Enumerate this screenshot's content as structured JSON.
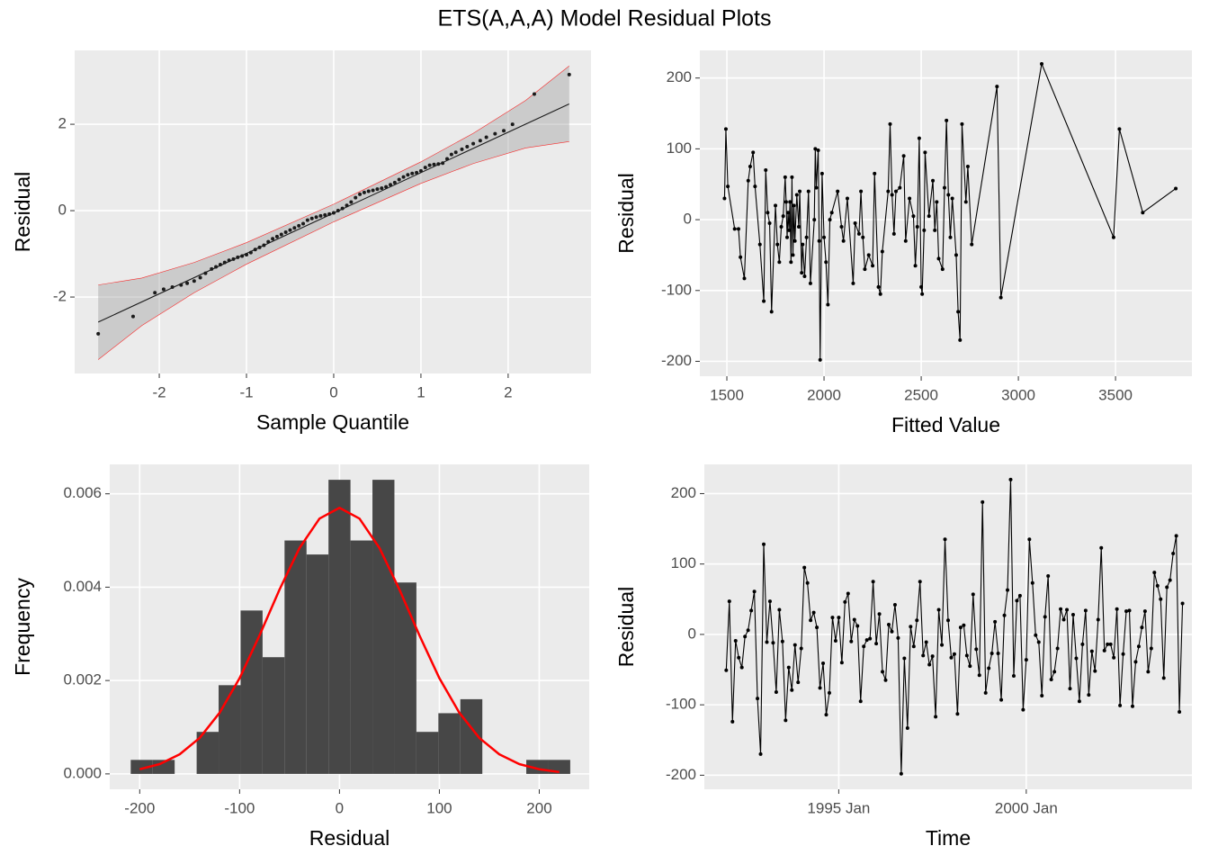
{
  "title": "ETS(A,A,A) Model Residual Plots",
  "chart_data": [
    {
      "type": "qq",
      "xlabel": "Sample Quantile",
      "ylabel": "Residual",
      "color": "#1a1a1a",
      "x": [
        -2.7,
        -2.3,
        -2.05,
        -1.95,
        -1.85,
        -1.75,
        -1.68,
        -1.6,
        -1.53,
        -1.47,
        -1.4,
        -1.35,
        -1.3,
        -1.25,
        -1.2,
        -1.15,
        -1.1,
        -1.05,
        -1,
        -0.95,
        -0.9,
        -0.85,
        -0.8,
        -0.75,
        -0.7,
        -0.65,
        -0.6,
        -0.55,
        -0.5,
        -0.45,
        -0.4,
        -0.35,
        -0.3,
        -0.25,
        -0.2,
        -0.15,
        -0.1,
        -0.05,
        0,
        0.05,
        0.1,
        0.15,
        0.2,
        0.25,
        0.3,
        0.35,
        0.4,
        0.45,
        0.5,
        0.55,
        0.6,
        0.65,
        0.7,
        0.75,
        0.8,
        0.85,
        0.9,
        0.95,
        1,
        1.05,
        1.1,
        1.15,
        1.2,
        1.25,
        1.3,
        1.35,
        1.4,
        1.47,
        1.53,
        1.6,
        1.68,
        1.75,
        1.85,
        1.95,
        2.05,
        2.3,
        2.7
      ],
      "values": [
        -2.85,
        -2.45,
        -1.9,
        -1.82,
        -1.77,
        -1.72,
        -1.68,
        -1.63,
        -1.55,
        -1.45,
        -1.35,
        -1.3,
        -1.25,
        -1.2,
        -1.15,
        -1.12,
        -1.08,
        -1.05,
        -1.02,
        -0.97,
        -0.9,
        -0.85,
        -0.8,
        -0.72,
        -0.65,
        -0.6,
        -0.55,
        -0.5,
        -0.45,
        -0.4,
        -0.35,
        -0.3,
        -0.22,
        -0.18,
        -0.15,
        -0.12,
        -0.1,
        -0.08,
        -0.05,
        0,
        0.05,
        0.12,
        0.2,
        0.3,
        0.38,
        0.42,
        0.45,
        0.47,
        0.5,
        0.52,
        0.55,
        0.6,
        0.65,
        0.72,
        0.78,
        0.83,
        0.86,
        0.88,
        0.92,
        1.0,
        1.05,
        1.07,
        1.08,
        1.1,
        1.2,
        1.3,
        1.35,
        1.42,
        1.48,
        1.55,
        1.62,
        1.7,
        1.78,
        1.85,
        2.0,
        2.7,
        3.15
      ],
      "reference_line": {
        "x": [
          -2.7,
          2.7
        ],
        "values": [
          -2.58,
          2.47
        ]
      },
      "band": {
        "color": "#ff0000",
        "x": [
          -2.7,
          -2.2,
          -1.6,
          -1,
          0,
          1,
          1.6,
          2.2,
          2.7
        ],
        "lower": [
          -3.45,
          -2.66,
          -1.9,
          -1.24,
          -0.26,
          0.63,
          1.09,
          1.45,
          1.6
        ],
        "upper": [
          -1.72,
          -1.56,
          -1.2,
          -0.74,
          0.15,
          1.13,
          1.79,
          2.55,
          3.35
        ]
      },
      "xlim": [
        -2.97,
        2.95
      ],
      "ylim": [
        -3.77,
        3.71
      ],
      "xticks": [
        -2,
        -1,
        0,
        1,
        2
      ],
      "yticks": [
        -2,
        0,
        2
      ],
      "grid": true
    },
    {
      "type": "line",
      "xlabel": "Fitted Value",
      "ylabel": "Residual",
      "x": [
        1488,
        1495,
        1505,
        1540,
        1560,
        1570,
        1590,
        1610,
        1620,
        1635,
        1645,
        1670,
        1690,
        1700,
        1710,
        1720,
        1730,
        1750,
        1760,
        1770,
        1780,
        1790,
        1800,
        1805,
        1810,
        1815,
        1820,
        1825,
        1830,
        1835,
        1840,
        1845,
        1850,
        1860,
        1870,
        1875,
        1885,
        1890,
        1900,
        1910,
        1920,
        1930,
        1950,
        1955,
        1960,
        1970,
        1975,
        1980,
        1990,
        2000,
        2010,
        2020,
        2030,
        2040,
        2070,
        2090,
        2100,
        2120,
        2150,
        2160,
        2180,
        2190,
        2200,
        2210,
        2230,
        2250,
        2260,
        2280,
        2290,
        2300,
        2330,
        2340,
        2350,
        2360,
        2370,
        2390,
        2410,
        2420,
        2440,
        2460,
        2470,
        2480,
        2490,
        2500,
        2505,
        2515,
        2520,
        2540,
        2560,
        2570,
        2580,
        2590,
        2610,
        2620,
        2630,
        2640,
        2650,
        2660,
        2680,
        2690,
        2700,
        2710,
        2730,
        2740,
        2760,
        2890,
        2910,
        3120,
        3490,
        3520,
        3640,
        3810
      ],
      "series": [
        {
          "color": "#000000",
          "values": [
            30,
            128,
            47,
            -13,
            -13,
            -53,
            -83,
            55,
            75,
            95,
            47,
            -35,
            -115,
            70,
            10,
            -5,
            -130,
            20,
            -35,
            -60,
            -10,
            5,
            60,
            25,
            -25,
            10,
            -15,
            25,
            -60,
            60,
            -50,
            20,
            -30,
            35,
            -10,
            40,
            -75,
            -35,
            -80,
            -25,
            40,
            -90,
            0,
            100,
            45,
            98,
            -30,
            -198,
            65,
            -25,
            -60,
            -120,
            0,
            10,
            40,
            -10,
            -30,
            30,
            -90,
            -5,
            -20,
            40,
            -25,
            -70,
            -50,
            -65,
            65,
            -95,
            -105,
            -45,
            40,
            135,
            35,
            -20,
            40,
            45,
            90,
            -30,
            30,
            5,
            -65,
            -10,
            115,
            -95,
            -105,
            -15,
            95,
            5,
            55,
            -15,
            25,
            -55,
            -70,
            45,
            140,
            35,
            -25,
            30,
            -50,
            -130,
            -170,
            135,
            25,
            75,
            -35,
            188,
            -110,
            220,
            -25,
            128,
            10,
            44
          ]
        }
      ],
      "xlim": [
        1361,
        3893
      ],
      "ylim": [
        -221,
        239
      ],
      "xticks": [
        1500,
        2000,
        2500,
        3000,
        3500
      ],
      "yticks": [
        -200,
        -100,
        0,
        100,
        200
      ],
      "grid": true
    },
    {
      "type": "histogram",
      "xlabel": "Residual",
      "ylabel": "Frequency",
      "color": "#474747",
      "bins": [
        -209,
        -187,
        -165,
        -143,
        -121,
        -99,
        -77,
        -55,
        -33,
        -11,
        11,
        33,
        55,
        77,
        99,
        121,
        143,
        165,
        187,
        209,
        231
      ],
      "values": [
        0.0003,
        0.0003,
        0,
        0.0009,
        0.0019,
        0.0035,
        0.0025,
        0.005,
        0.0047,
        0.0063,
        0.005,
        0.0063,
        0.0041,
        0.0009,
        0.0013,
        0.0016,
        0,
        0,
        0.0003,
        0.0003
      ],
      "density_curve": {
        "color": "#ff0000",
        "x": [
          -200,
          -180,
          -160,
          -140,
          -120,
          -100,
          -80,
          -60,
          -40,
          -20,
          0,
          20,
          40,
          60,
          80,
          100,
          120,
          140,
          160,
          180,
          200,
          220
        ],
        "values": [
          0.0001,
          0.00021,
          0.00042,
          0.00077,
          0.00131,
          0.00205,
          0.00297,
          0.00395,
          0.00484,
          0.00547,
          0.0057,
          0.00547,
          0.00484,
          0.00395,
          0.00297,
          0.00205,
          0.00131,
          0.00077,
          0.00042,
          0.00021,
          0.0001,
          4e-05
        ]
      },
      "xlim": [
        -230,
        250
      ],
      "ylim": [
        -0.00033,
        0.00663
      ],
      "xticks": [
        -200,
        -100,
        0,
        100,
        200
      ],
      "yticks": [
        {
          "value": 0,
          "label": "0.000"
        },
        {
          "value": 0.002,
          "label": "0.002"
        },
        {
          "value": 0.004,
          "label": "0.004"
        },
        {
          "value": 0.006,
          "label": "0.006"
        }
      ],
      "grid": true
    },
    {
      "type": "line",
      "xlabel": "Time",
      "ylabel": "Residual",
      "x": [
        "1992-01",
        "1992-02",
        "1992-03",
        "1992-04",
        "1992-05",
        "1992-06",
        "1992-07",
        "1992-08",
        "1992-09",
        "1992-10",
        "1992-11",
        "1992-12",
        "1993-01",
        "1993-02",
        "1993-03",
        "1993-04",
        "1993-05",
        "1993-06",
        "1993-07",
        "1993-08",
        "1993-09",
        "1993-10",
        "1993-11",
        "1993-12",
        "1994-01",
        "1994-02",
        "1994-03",
        "1994-04",
        "1994-05",
        "1994-06",
        "1994-07",
        "1994-08",
        "1994-09",
        "1994-10",
        "1994-11",
        "1994-12",
        "1995-01",
        "1995-02",
        "1995-03",
        "1995-04",
        "1995-05",
        "1995-06",
        "1995-07",
        "1995-08",
        "1995-09",
        "1995-10",
        "1995-11",
        "1995-12",
        "1996-01",
        "1996-02",
        "1996-03",
        "1996-04",
        "1996-05",
        "1996-06",
        "1996-07",
        "1996-08",
        "1996-09",
        "1996-10",
        "1996-11",
        "1996-12",
        "1997-01",
        "1997-02",
        "1997-03",
        "1997-04",
        "1997-05",
        "1997-06",
        "1997-07",
        "1997-08",
        "1997-09",
        "1997-10",
        "1997-11",
        "1997-12",
        "1998-01",
        "1998-02",
        "1998-03",
        "1998-04",
        "1998-05",
        "1998-06",
        "1998-07",
        "1998-08",
        "1998-09",
        "1998-10",
        "1998-11",
        "1998-12",
        "1999-01",
        "1999-02",
        "1999-03",
        "1999-04",
        "1999-05",
        "1999-06",
        "1999-07",
        "1999-08",
        "1999-09",
        "1999-10",
        "1999-11",
        "1999-12",
        "2000-01",
        "2000-02",
        "2000-03",
        "2000-04",
        "2000-05",
        "2000-06",
        "2000-07",
        "2000-08",
        "2000-09",
        "2000-10",
        "2000-11",
        "2000-12",
        "2001-01",
        "2001-02",
        "2001-03",
        "2001-04",
        "2001-05",
        "2001-06",
        "2001-07",
        "2001-08",
        "2001-09",
        "2001-10",
        "2001-11",
        "2001-12",
        "2002-01",
        "2002-02",
        "2002-03",
        "2002-04",
        "2002-05",
        "2002-06",
        "2002-07",
        "2002-08",
        "2002-09",
        "2002-10",
        "2002-11",
        "2002-12",
        "2003-01",
        "2003-02",
        "2003-03",
        "2003-04",
        "2003-05",
        "2003-06",
        "2003-07",
        "2003-08",
        "2003-09",
        "2003-10",
        "2003-11",
        "2003-12",
        "2004-01",
        "2004-02",
        "2004-03"
      ],
      "series": [
        {
          "color": "#000000",
          "values": [
            -51,
            47,
            -124,
            -9,
            -33,
            -47,
            -3,
            6,
            34,
            61,
            -91,
            -170,
            128,
            -11,
            47,
            -12,
            -82,
            35,
            -10,
            -122,
            -47,
            -79,
            -15,
            -68,
            -20,
            95,
            73,
            20,
            31,
            10,
            -76,
            -41,
            -114,
            -83,
            24,
            -9,
            24,
            -40,
            46,
            58,
            -10,
            21,
            12,
            -95,
            -17,
            -8,
            -6,
            75,
            -13,
            29,
            -53,
            -65,
            14,
            4,
            42,
            -5,
            -198,
            -34,
            -133,
            11,
            -17,
            20,
            75,
            -30,
            -11,
            -43,
            -31,
            -117,
            35,
            -15,
            135,
            20,
            -33,
            -28,
            -113,
            10,
            13,
            -30,
            -45,
            57,
            -21,
            -58,
            188,
            -83,
            -48,
            -27,
            18,
            -27,
            -93,
            27,
            63,
            220,
            -59,
            48,
            55,
            -107,
            -36,
            135,
            73,
            -1,
            -11,
            -87,
            25,
            83,
            -64,
            -53,
            -20,
            36,
            21,
            35,
            -77,
            28,
            -34,
            -95,
            -14,
            34,
            -86,
            -24,
            -52,
            21,
            123,
            -23,
            -14,
            -14,
            -33,
            36,
            -101,
            -28,
            33,
            34,
            -102,
            -39,
            -17,
            10,
            33,
            -53,
            -20,
            88,
            69,
            50,
            -62,
            67,
            77,
            115,
            140,
            -110,
            44
          ]
        }
      ],
      "xlim": [
        "1991-06",
        "2004-06"
      ],
      "ylim": [
        -220,
        241.5
      ],
      "xticks": [
        {
          "value": "1995-01",
          "label": "1995 Jan"
        },
        {
          "value": "2000-01",
          "label": "2000 Jan"
        }
      ],
      "yticks": [
        -200,
        -100,
        0,
        100,
        200
      ],
      "grid": true
    }
  ]
}
